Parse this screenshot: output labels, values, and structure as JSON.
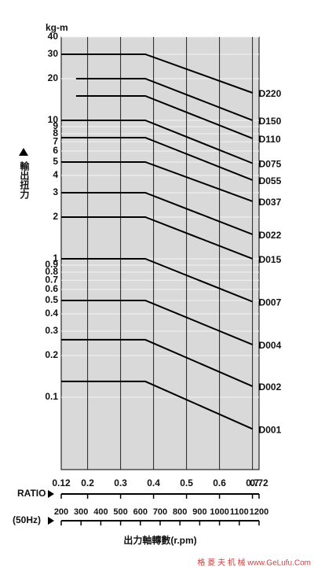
{
  "chart_data": {
    "type": "line",
    "y_unit": "kg-m",
    "y_label": "輸出扭力",
    "x_label": "RATIO",
    "x2_label": "(50Hz)",
    "x2_title": "出力軸轉數(r.pm)",
    "watermark": "格 菱 夫 机 械 www.GeLufu.Com",
    "log_y": true,
    "grid": true,
    "plot_background": "#d9d9d9",
    "ylim": [
      0.03,
      40
    ],
    "yticks": [
      40,
      30,
      20,
      10,
      9,
      8,
      7,
      6,
      5,
      4,
      3,
      2,
      1,
      0.9,
      0.8,
      0.7,
      0.6,
      0.5,
      0.4,
      0.3,
      0.2,
      0.1
    ],
    "xlim": [
      0.12,
      0.72
    ],
    "xticks": [
      0.12,
      0.2,
      0.3,
      0.4,
      0.5,
      0.6,
      0.7,
      0.72
    ],
    "x2lim": [
      200,
      1200
    ],
    "x2ticks": [
      200,
      300,
      400,
      500,
      600,
      700,
      800,
      900,
      1000,
      1100,
      1200
    ],
    "series": [
      {
        "name": "D220",
        "color": "#000000",
        "x": [
          0.12,
          0.375,
          0.7
        ],
        "values": [
          30,
          30,
          15.8
        ]
      },
      {
        "name": "D150",
        "color": "#000000",
        "x": [
          0.165,
          0.375,
          0.7
        ],
        "values": [
          20,
          20,
          10
        ]
      },
      {
        "name": "D110",
        "color": "#000000",
        "x": [
          0.165,
          0.375,
          0.7
        ],
        "values": [
          15,
          15,
          7.4
        ]
      },
      {
        "name": "D075",
        "color": "#000000",
        "x": [
          0.12,
          0.375,
          0.7
        ],
        "values": [
          10,
          10,
          4.9
        ]
      },
      {
        "name": "D055",
        "color": "#000000",
        "x": [
          0.12,
          0.375,
          0.7
        ],
        "values": [
          7.5,
          7.5,
          3.7
        ]
      },
      {
        "name": "D037",
        "color": "#000000",
        "x": [
          0.12,
          0.375,
          0.7
        ],
        "values": [
          5,
          5,
          2.6
        ]
      },
      {
        "name": "D022",
        "color": "#000000",
        "x": [
          0.12,
          0.375,
          0.7
        ],
        "values": [
          3,
          3,
          1.5
        ]
      },
      {
        "name": "D015",
        "color": "#000000",
        "x": [
          0.12,
          0.375,
          0.7
        ],
        "values": [
          2,
          2,
          1
        ]
      },
      {
        "name": "D007",
        "color": "#000000",
        "x": [
          0.12,
          0.375,
          0.7
        ],
        "values": [
          1,
          1,
          0.49
        ]
      },
      {
        "name": "D004",
        "color": "#000000",
        "x": [
          0.12,
          0.375,
          0.7
        ],
        "values": [
          0.5,
          0.5,
          0.24
        ]
      },
      {
        "name": "D002",
        "color": "#000000",
        "x": [
          0.12,
          0.375,
          0.7
        ],
        "values": [
          0.26,
          0.26,
          0.12
        ]
      },
      {
        "name": "D001",
        "color": "#000000",
        "x": [
          0.12,
          0.375,
          0.7
        ],
        "values": [
          0.13,
          0.13,
          0.059
        ]
      }
    ]
  }
}
